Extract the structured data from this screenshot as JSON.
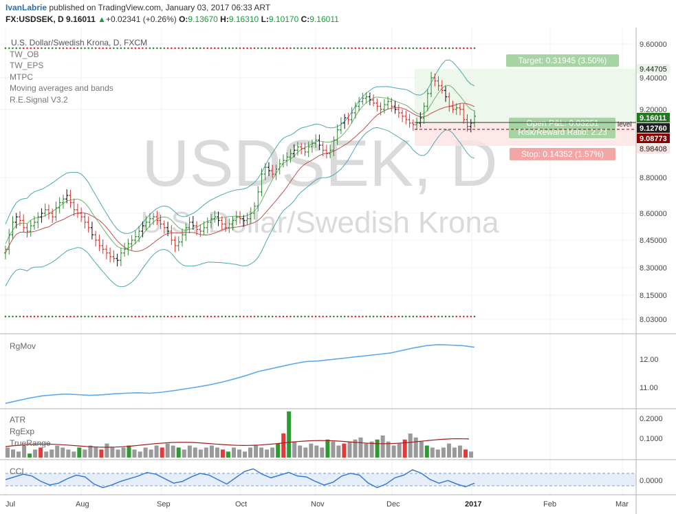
{
  "header": {
    "author": "IvanLabrie",
    "published_text": "published on TradingView.com, January 03, 2017 06:33 ART",
    "symbol": "FX:USDSEK, D",
    "last": "9.16011",
    "change_arrow": "▲",
    "change": "+0.02341 (+0.26%)",
    "open_label": "O:",
    "open": "9.13670",
    "high_label": "H:",
    "high": "9.16310",
    "low_label": "L:",
    "low": "9.10170",
    "close_label": "C:",
    "close": "9.16011"
  },
  "watermark": {
    "big": "USDSEK, D",
    "sub": "U.S. Dollar/Swedish Krona"
  },
  "main_pane": {
    "instrument": "U.S. Dollar/Swedish Krona, D, FXCM",
    "indicators": [
      "TW_OB",
      "TW_EPS",
      "MTPC",
      "Moving averages and bands",
      "R.E.Signal V3.2"
    ],
    "price_ticks": [
      "9.60000",
      "9.40000",
      "9.20000",
      "8.80000",
      "8.60000",
      "8.45000",
      "8.30000",
      "8.15000",
      "8.03000"
    ],
    "price_tags": {
      "target": "9.44705",
      "last": "9.16011",
      "entry": "9.12760",
      "low_marker": "9.08773",
      "stop": "8.98408"
    },
    "target_label": "Target: 0.31945 (3.50%)",
    "pl_label": "Open P&L: 0.03251",
    "rr_label": "Risk/Reward Ratio: 2.23",
    "stop_label": "Stop: 0.14352 (1.57%)",
    "level_label": "level"
  },
  "rgmov_pane": {
    "label": "RgMov",
    "ticks": [
      "12.00",
      "11.00"
    ]
  },
  "atr_pane": {
    "labels": [
      "ATR",
      "RgExp",
      "TrueRange"
    ],
    "ticks": [
      "0.2000",
      "0.1000"
    ]
  },
  "cci_pane": {
    "label": "CCI",
    "ticks": [
      "0.0000"
    ]
  },
  "time_axis": [
    "Jul",
    "Aug",
    "Sep",
    "Oct",
    "Nov",
    "Dec",
    "2017",
    "Feb",
    "Mar"
  ],
  "colors": {
    "up": "#2f8a2f",
    "down": "#d9302c",
    "bands": "#4aa8b0",
    "rgmov": "#5aaaf0",
    "cci": "#3a78d8",
    "atr_line": "#a31818",
    "target": "#a6d4a4",
    "stop": "#f2a6a6"
  },
  "chart_data": [
    {
      "type": "candlestick",
      "title": "U.S. Dollar/Swedish Krona, D, FXCM",
      "x_range": [
        "2016-07-01",
        "2017-01-03"
      ],
      "y_range": [
        7.98,
        9.66
      ],
      "close": [
        8.4,
        8.48,
        8.55,
        8.58,
        8.56,
        8.52,
        8.5,
        8.53,
        8.55,
        8.58,
        8.6,
        8.62,
        8.6,
        8.58,
        8.63,
        8.66,
        8.68,
        8.7,
        8.66,
        8.62,
        8.6,
        8.58,
        8.55,
        8.52,
        8.48,
        8.45,
        8.42,
        8.4,
        8.38,
        8.36,
        8.35,
        8.34,
        8.38,
        8.4,
        8.43,
        8.45,
        8.47,
        8.5,
        8.53,
        8.55,
        8.57,
        8.58,
        8.56,
        8.54,
        8.52,
        8.5,
        8.45,
        8.42,
        8.44,
        8.48,
        8.52,
        8.55,
        8.53,
        8.51,
        8.5,
        8.52,
        8.55,
        8.57,
        8.58,
        8.56,
        8.54,
        8.52,
        8.54,
        8.56,
        8.58,
        8.57,
        8.56,
        8.57,
        8.6,
        8.64,
        8.72,
        8.82,
        8.86,
        8.84,
        8.82,
        8.85,
        8.88,
        8.9,
        8.92,
        8.94,
        8.96,
        8.98,
        8.97,
        8.95,
        8.98,
        9.0,
        9.02,
        8.99,
        8.96,
        8.94,
        8.96,
        9.02,
        9.08,
        9.12,
        9.15,
        9.14,
        9.18,
        9.22,
        9.25,
        9.27,
        9.28,
        9.26,
        9.24,
        9.22,
        9.2,
        9.23,
        9.25,
        9.22,
        9.2,
        9.18,
        9.16,
        9.14,
        9.12,
        9.11,
        9.12,
        9.15,
        9.22,
        9.3,
        9.4,
        9.38,
        9.35,
        9.32,
        9.28,
        9.22,
        9.2,
        9.21,
        9.2,
        9.14,
        9.1,
        9.12,
        9.16
      ]
    },
    {
      "type": "line",
      "title": "RgMov",
      "y_range": [
        10.4,
        13.0
      ],
      "values": [
        10.5,
        10.6,
        10.7,
        10.78,
        10.82,
        10.85,
        10.83,
        10.8,
        10.82,
        10.86,
        10.88,
        10.9,
        10.88,
        10.92,
        10.98,
        11.05,
        11.12,
        11.2,
        11.3,
        11.42,
        11.55,
        11.7,
        11.8,
        11.9,
        12.0,
        12.08,
        12.1,
        12.15,
        12.2,
        12.25,
        12.3,
        12.35,
        12.4,
        12.5,
        12.6,
        12.68,
        12.72,
        12.7,
        12.68,
        12.62
      ]
    },
    {
      "type": "bar",
      "title": "ATR / RgExp / TrueRange",
      "y_range": [
        0.0,
        0.24
      ],
      "true_range": [
        0.05,
        0.04,
        0.03,
        0.06,
        0.02,
        0.04,
        0.05,
        0.03,
        0.04,
        0.06,
        0.05,
        0.04,
        0.03,
        0.05,
        0.04,
        0.06,
        0.05,
        0.04,
        0.07,
        0.05,
        0.04,
        0.05,
        0.06,
        0.04,
        0.03,
        0.05,
        0.04,
        0.06,
        0.05,
        0.07,
        0.06,
        0.05,
        0.04,
        0.06,
        0.05,
        0.04,
        0.05,
        0.06,
        0.05,
        0.04,
        0.03,
        0.05,
        0.04,
        0.03,
        0.05,
        0.06,
        0.05,
        0.04,
        0.05,
        0.07,
        0.12,
        0.23,
        0.08,
        0.06,
        0.05,
        0.07,
        0.06,
        0.05,
        0.09,
        0.08,
        0.06,
        0.07,
        0.08,
        0.09,
        0.1,
        0.07,
        0.08,
        0.09,
        0.11,
        0.08,
        0.06,
        0.07,
        0.09,
        0.12,
        0.1,
        0.08,
        0.06,
        0.05,
        0.04,
        0.05,
        0.07,
        0.05,
        0.06,
        0.04,
        0.03
      ]
    },
    {
      "type": "line",
      "title": "CCI",
      "values": [
        0.0,
        0.3,
        0.6,
        0.4,
        -0.2,
        -0.6,
        -0.4,
        0.1,
        0.5,
        0.3,
        -0.5,
        -0.9,
        -0.6,
        -0.2,
        0.1,
        0.4,
        0.8,
        0.6,
        0.1,
        -0.4,
        -0.2,
        0.3,
        0.7,
        0.5,
        0.0,
        -0.5,
        0.2,
        0.9,
        1.2,
        0.6,
        0.2,
        0.5,
        0.8,
        0.4,
        0.3,
        -0.2,
        -0.6,
        -0.3,
        0.4,
        0.7,
        0.5,
        -0.4,
        -0.9,
        -0.5,
        0.2,
        0.5,
        1.1,
        0.7,
        0.0,
        -0.4,
        -0.1,
        -0.5,
        -0.8,
        -0.4
      ]
    }
  ]
}
